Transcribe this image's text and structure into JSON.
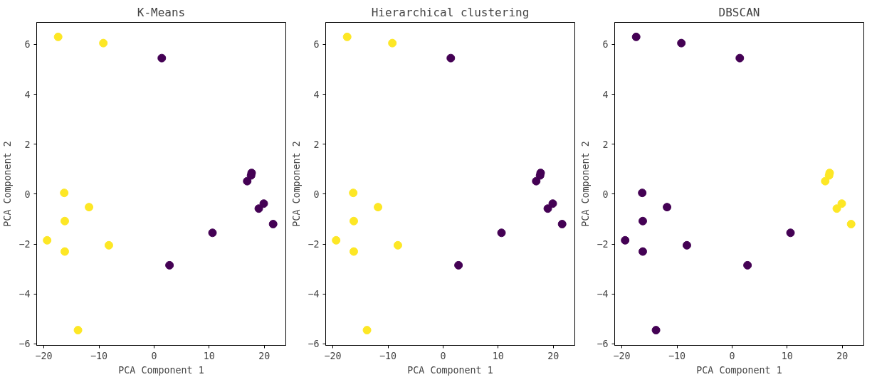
{
  "chart_data": [
    {
      "type": "scatter",
      "title": "K-Means",
      "xlabel": "PCA Component 1",
      "ylabel": "PCA Component 2",
      "marker": "circle",
      "grid": false,
      "xlim": [
        -21.3,
        23.9
      ],
      "ylim": [
        -6.06,
        6.88
      ],
      "xticks": [
        -20,
        -10,
        0,
        10,
        20
      ],
      "yticks": [
        -6,
        -4,
        -2,
        0,
        2,
        4,
        6
      ],
      "series": [
        {
          "color": "#fde725",
          "x": [
            -17.4,
            -9.2,
            -16.3,
            -11.8,
            -16.2,
            -19.4,
            -16.2,
            -8.2,
            -13.8
          ],
          "values": [
            6.3,
            6.05,
            0.05,
            -0.52,
            -1.08,
            -1.85,
            -2.3,
            -2.05,
            -5.45
          ]
        },
        {
          "color": "#440154",
          "x": [
            1.4,
            17.7,
            17.6,
            16.9,
            19.9,
            19.0,
            21.6,
            10.6,
            2.8
          ],
          "values": [
            5.45,
            0.85,
            0.75,
            0.52,
            -0.38,
            -0.58,
            -1.2,
            -1.55,
            -2.85
          ]
        }
      ]
    },
    {
      "type": "scatter",
      "title": "Hierarchical clustering",
      "xlabel": "PCA Component 1",
      "ylabel": "PCA Component 2",
      "marker": "circle",
      "grid": false,
      "xlim": [
        -21.3,
        23.9
      ],
      "ylim": [
        -6.06,
        6.88
      ],
      "xticks": [
        -20,
        -10,
        0,
        10,
        20
      ],
      "yticks": [
        -6,
        -4,
        -2,
        0,
        2,
        4,
        6
      ],
      "series": [
        {
          "color": "#fde725",
          "x": [
            -17.4,
            -9.2,
            -16.3,
            -11.8,
            -16.2,
            -19.4,
            -16.2,
            -8.2,
            -13.8
          ],
          "values": [
            6.3,
            6.05,
            0.05,
            -0.52,
            -1.08,
            -1.85,
            -2.3,
            -2.05,
            -5.45
          ]
        },
        {
          "color": "#440154",
          "x": [
            1.4,
            17.7,
            17.6,
            16.9,
            19.9,
            19.0,
            21.6,
            10.6,
            2.8
          ],
          "values": [
            5.45,
            0.85,
            0.75,
            0.52,
            -0.38,
            -0.58,
            -1.2,
            -1.55,
            -2.85
          ]
        }
      ]
    },
    {
      "type": "scatter",
      "title": "DBSCAN",
      "xlabel": "PCA Component 1",
      "ylabel": "PCA Component 2",
      "marker": "circle",
      "grid": false,
      "xlim": [
        -21.3,
        23.9
      ],
      "ylim": [
        -6.06,
        6.88
      ],
      "xticks": [
        -20,
        -10,
        0,
        10,
        20
      ],
      "yticks": [
        -6,
        -4,
        -2,
        0,
        2,
        4,
        6
      ],
      "series": [
        {
          "color": "#440154",
          "x": [
            -17.4,
            -9.2,
            -16.3,
            -11.8,
            -16.2,
            -19.4,
            -16.2,
            -8.2,
            -13.8,
            1.4,
            10.6,
            2.8
          ],
          "values": [
            6.3,
            6.05,
            0.05,
            -0.52,
            -1.08,
            -1.85,
            -2.3,
            -2.05,
            -5.45,
            5.45,
            -1.55,
            -2.85
          ]
        },
        {
          "color": "#fde725",
          "x": [
            17.7,
            17.6,
            16.9,
            19.9,
            19.0,
            21.6
          ],
          "values": [
            0.85,
            0.75,
            0.52,
            -0.38,
            -0.58,
            -1.2
          ]
        }
      ]
    }
  ]
}
